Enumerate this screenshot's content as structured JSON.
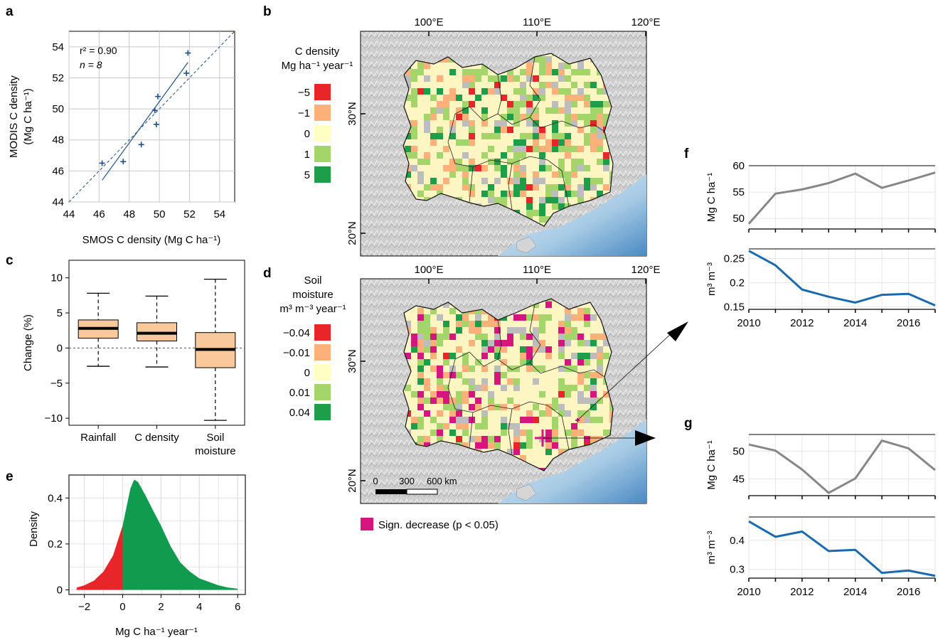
{
  "panels": {
    "a": "a",
    "b": "b",
    "c": "c",
    "d": "d",
    "e": "e",
    "f": "f",
    "g": "g"
  },
  "chart_data": [
    {
      "panel": "a",
      "type": "scatter",
      "xlabel": "SMOS C density (Mg C ha⁻¹)",
      "ylabel": [
        "MODIS C density",
        "(Mg C ha⁻¹)"
      ],
      "xlim": [
        44,
        55
      ],
      "ylim": [
        44,
        55
      ],
      "xticks": [
        44,
        46,
        48,
        50,
        52,
        54
      ],
      "yticks": [
        44,
        46,
        48,
        50,
        52,
        54
      ],
      "stats": {
        "r2_label": "r² = 0.90",
        "n_label": "n = 8"
      },
      "points": [
        [
          46.2,
          46.5
        ],
        [
          47.6,
          46.6
        ],
        [
          48.8,
          47.7
        ],
        [
          49.7,
          49.9
        ],
        [
          49.8,
          49.0
        ],
        [
          49.9,
          50.8
        ],
        [
          51.8,
          52.3
        ],
        [
          51.9,
          53.6
        ]
      ],
      "fit_line": [
        [
          46.2,
          45.4
        ],
        [
          51.9,
          53.0
        ]
      ],
      "one_to_one": [
        [
          44,
          44
        ],
        [
          55,
          55
        ]
      ],
      "grid": true
    },
    {
      "panel": "c",
      "type": "boxplot",
      "ylabel": "Change (%)",
      "ylim": [
        -11,
        12.5
      ],
      "yticks": [
        10,
        5,
        0,
        -5,
        -10
      ],
      "categories": [
        "Rainfall",
        "C density",
        "Soil moisture"
      ],
      "category_lines": [
        [
          "Rainfall"
        ],
        [
          "C density"
        ],
        [
          "Soil",
          "moisture"
        ]
      ],
      "boxes": [
        {
          "whisker_low": -2.6,
          "q1": 1.4,
          "median": 2.8,
          "q3": 4.0,
          "whisker_high": 7.8
        },
        {
          "whisker_low": -2.7,
          "q1": 1.0,
          "median": 2.1,
          "q3": 3.6,
          "whisker_high": 7.4
        },
        {
          "whisker_low": -10.3,
          "q1": -2.8,
          "median": -0.2,
          "q3": 2.2,
          "whisker_high": 9.8
        }
      ],
      "reference_line": 0,
      "colors": {
        "box": "#f9c89b"
      }
    },
    {
      "panel": "e",
      "type": "area",
      "xlabel": "Mg C ha⁻¹ year⁻¹",
      "ylabel": "Density",
      "xlim": [
        -2.8,
        6.4
      ],
      "ylim": [
        -0.02,
        0.5
      ],
      "xticks": [
        -2,
        0,
        2,
        4,
        6
      ],
      "yticks": [
        0,
        0.2,
        0.4
      ],
      "x": [
        -2.4,
        -2.0,
        -1.5,
        -1.0,
        -0.5,
        0.0,
        0.2,
        0.4,
        0.6,
        0.8,
        1.0,
        1.2,
        1.5,
        2.0,
        2.5,
        3.0,
        3.5,
        4.0,
        4.5,
        5.0,
        5.5,
        6.0
      ],
      "y": [
        0.01,
        0.02,
        0.04,
        0.08,
        0.15,
        0.28,
        0.36,
        0.44,
        0.48,
        0.47,
        0.44,
        0.41,
        0.36,
        0.28,
        0.19,
        0.12,
        0.08,
        0.05,
        0.035,
        0.02,
        0.01,
        0.005
      ],
      "split_at": 0,
      "colors": {
        "negative": "#e8262a",
        "positive": "#109b4e"
      },
      "grid": true
    },
    {
      "panel": "f",
      "type": "line",
      "x": [
        2010,
        2011,
        2012,
        2013,
        2014,
        2015,
        2016,
        2017
      ],
      "xticks": [
        2010,
        2012,
        2014,
        2016
      ],
      "top": {
        "ylabel": "Mg C ha⁻¹",
        "ylim": [
          48,
          60
        ],
        "yticks": [
          50,
          55,
          60
        ],
        "values": [
          49.0,
          54.7,
          55.5,
          56.7,
          58.5,
          55.8,
          57.2,
          58.7
        ],
        "color": "#878787"
      },
      "bottom": {
        "ylabel": "m³ m⁻³",
        "ylim": [
          0.145,
          0.27
        ],
        "yticks": [
          0.15,
          0.2,
          0.25
        ],
        "values": [
          0.266,
          0.236,
          0.186,
          0.171,
          0.159,
          0.175,
          0.177,
          0.153
        ],
        "color": "#1a6ab0"
      }
    },
    {
      "panel": "g",
      "type": "line",
      "x": [
        2010,
        2011,
        2012,
        2013,
        2014,
        2015,
        2016,
        2017
      ],
      "xticks": [
        2010,
        2012,
        2014,
        2016
      ],
      "top": {
        "ylabel": "Mg C ha⁻¹",
        "ylim": [
          42,
          53
        ],
        "yticks": [
          45,
          50
        ],
        "values": [
          51.2,
          50.1,
          46.7,
          42.5,
          45.1,
          51.9,
          50.5,
          46.6
        ],
        "color": "#878787"
      },
      "bottom": {
        "ylabel": "m³ m⁻³",
        "ylim": [
          0.27,
          0.48
        ],
        "yticks": [
          0.3,
          0.4
        ],
        "values": [
          0.465,
          0.412,
          0.43,
          0.363,
          0.367,
          0.288,
          0.296,
          0.278
        ],
        "color": "#1a6ab0"
      }
    }
  ],
  "maps": {
    "b": {
      "legend_title": [
        "C density",
        "Mg ha⁻¹ year⁻¹"
      ],
      "legend": [
        {
          "label": "−5",
          "color": "#e8262a"
        },
        {
          "label": "−1",
          "color": "#fdb07a"
        },
        {
          "label": "0",
          "color": "#ffffc4"
        },
        {
          "label": "1",
          "color": "#a3d56a"
        },
        {
          "label": "5",
          "color": "#1f9e4a"
        }
      ],
      "lon_labels": [
        "100°E",
        "110°E",
        "120°E"
      ],
      "lat_labels": [
        "30°N",
        "20°N"
      ]
    },
    "d": {
      "legend_title": [
        "Soil",
        "moisture",
        "m³ m⁻³ year⁻¹"
      ],
      "legend": [
        {
          "label": "−0.04",
          "color": "#e8262a"
        },
        {
          "label": "−0.01",
          "color": "#fdb07a"
        },
        {
          "label": "0",
          "color": "#ffffc4"
        },
        {
          "label": "0.01",
          "color": "#a3d56a"
        },
        {
          "label": "0.04",
          "color": "#1f9e4a"
        }
      ],
      "lon_labels": [
        "100°E",
        "110°E",
        "120°E"
      ],
      "lat_labels": [
        "30°N",
        "20°N"
      ],
      "scalebar": [
        "0",
        "300",
        "600 km"
      ],
      "signif_legend": {
        "label": "Sign. decrease (p < 0.05)",
        "color": "#d6157f"
      }
    }
  }
}
